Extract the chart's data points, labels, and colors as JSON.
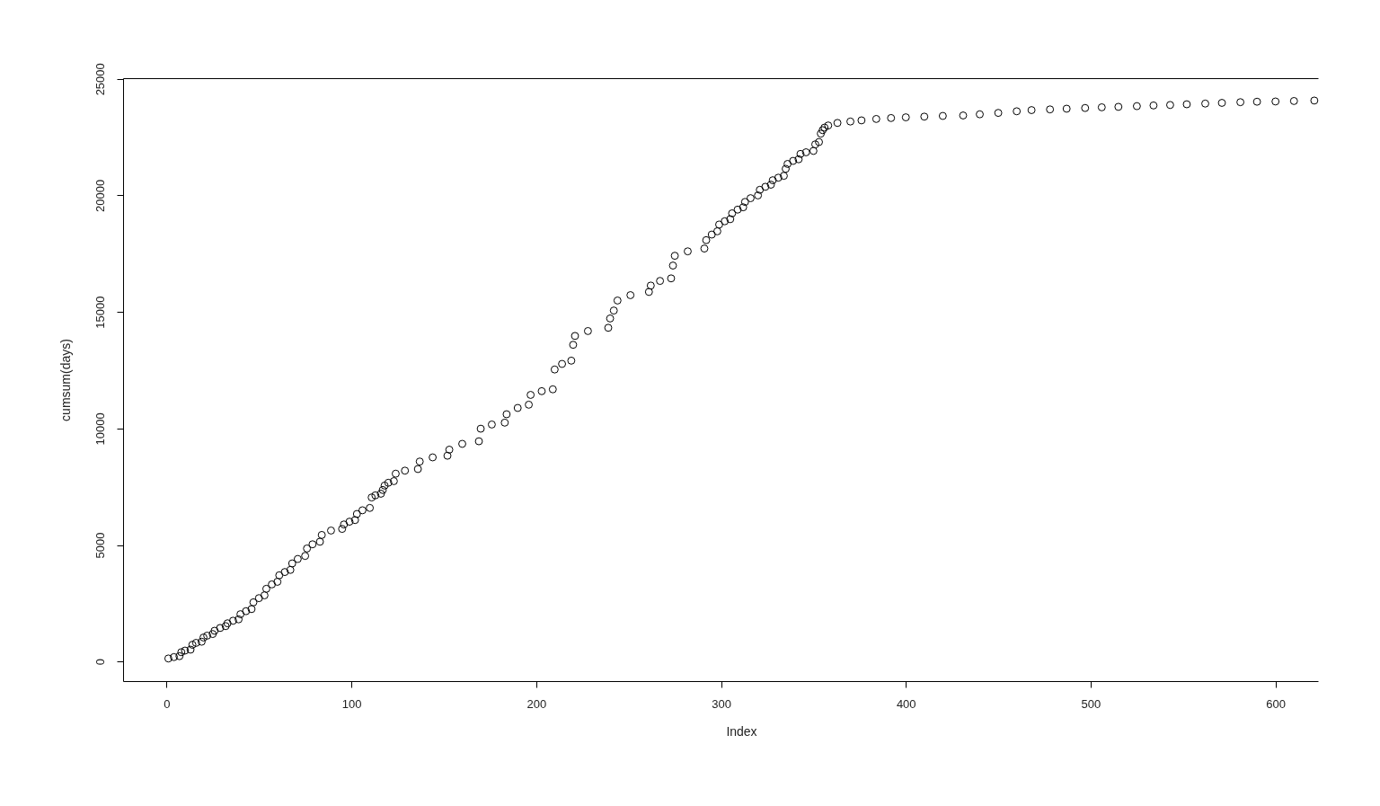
{
  "chart_data": {
    "type": "scatter",
    "xlabel": "Index",
    "ylabel": "cumsum(days)",
    "color": "#000000",
    "marker": "circle",
    "x": [
      1,
      4,
      7,
      8,
      10,
      13,
      14,
      16,
      19,
      20,
      22,
      25,
      26,
      29,
      32,
      33,
      36,
      39,
      40,
      43,
      46,
      47,
      50,
      53,
      54,
      57,
      60,
      61,
      64,
      67,
      68,
      71,
      75,
      76,
      79,
      83,
      84,
      89,
      95,
      96,
      99,
      102,
      103,
      106,
      110,
      111,
      113,
      116,
      117,
      118,
      120,
      123,
      124,
      129,
      136,
      137,
      144,
      152,
      153,
      160,
      169,
      170,
      176,
      183,
      184,
      190,
      196,
      197,
      203,
      209,
      210,
      214,
      219,
      220,
      221,
      228,
      239,
      240,
      242,
      244,
      251,
      261,
      262,
      267,
      273,
      274,
      275,
      282,
      291,
      292,
      295,
      298,
      299,
      302,
      305,
      306,
      309,
      312,
      313,
      316,
      320,
      321,
      324,
      327,
      328,
      331,
      334,
      335,
      336,
      339,
      342,
      343,
      346,
      350,
      351,
      353,
      354,
      355,
      356,
      358,
      363,
      370,
      376,
      384,
      392,
      400,
      410,
      420,
      431,
      440,
      450,
      460,
      468,
      478,
      487,
      497,
      506,
      515,
      525,
      534,
      543,
      552,
      562,
      571,
      581,
      590,
      600,
      610,
      621
    ],
    "values": [
      130,
      190,
      230,
      400,
      470,
      510,
      720,
      800,
      850,
      1030,
      1110,
      1180,
      1320,
      1440,
      1520,
      1640,
      1750,
      1810,
      2030,
      2160,
      2250,
      2540,
      2720,
      2840,
      3120,
      3310,
      3420,
      3700,
      3840,
      3930,
      4210,
      4400,
      4530,
      4850,
      5030,
      5140,
      5430,
      5620,
      5690,
      5880,
      6000,
      6070,
      6330,
      6490,
      6590,
      7040,
      7130,
      7200,
      7360,
      7550,
      7670,
      7740,
      8060,
      8190,
      8260,
      8580,
      8760,
      8830,
      9090,
      9340,
      9450,
      9990,
      10170,
      10250,
      10610,
      10880,
      11020,
      11440,
      11600,
      11680,
      12530,
      12770,
      12910,
      13590,
      13970,
      14180,
      14320,
      14720,
      15060,
      15490,
      15720,
      15860,
      16130,
      16330,
      16440,
      16990,
      17410,
      17600,
      17720,
      18080,
      18320,
      18460,
      18750,
      18890,
      18980,
      19230,
      19390,
      19490,
      19720,
      19880,
      20000,
      20240,
      20370,
      20460,
      20650,
      20760,
      20840,
      21140,
      21350,
      21480,
      21550,
      21780,
      21850,
      21910,
      22190,
      22290,
      22650,
      22800,
      22910,
      23000,
      23110,
      23170,
      23220,
      23280,
      23320,
      23350,
      23380,
      23410,
      23430,
      23480,
      23540,
      23610,
      23660,
      23690,
      23720,
      23750,
      23780,
      23800,
      23830,
      23860,
      23880,
      23910,
      23940,
      23970,
      24000,
      24020,
      24030,
      24050,
      24070
    ],
    "xlim": [
      -23.5,
      623
    ],
    "xticks": [
      0,
      100,
      200,
      300,
      400,
      500,
      600
    ],
    "ylim": [
      -840,
      25030
    ],
    "yticks": [
      0,
      5000,
      10000,
      15000,
      20000,
      25000
    ]
  }
}
